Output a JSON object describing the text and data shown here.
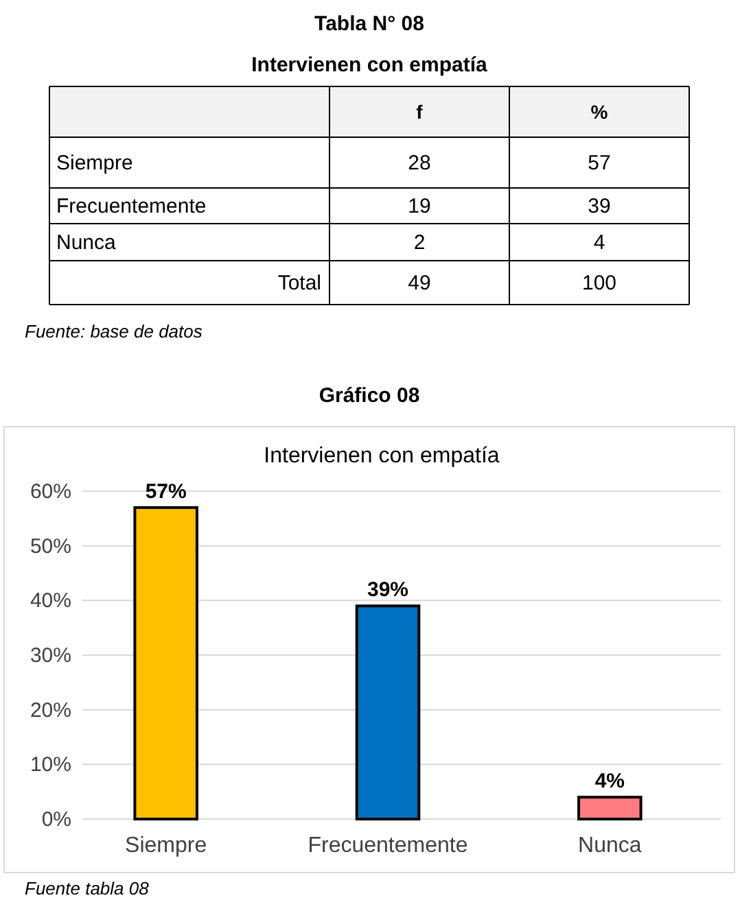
{
  "chart_data": [
    {
      "type": "other",
      "title": "Tabla N° 08",
      "subtitle": "Intervienen con empatía",
      "categories": [
        "Siempre",
        "Frecuentemente",
        "Nunca",
        "Total"
      ],
      "series": [
        {
          "name": "f",
          "values": [
            28,
            19,
            2,
            49
          ]
        },
        {
          "name": "%",
          "values": [
            57,
            39,
            4,
            100
          ]
        }
      ],
      "data_labels": true,
      "annotations": [
        "Fuente: base de datos"
      ]
    },
    {
      "type": "bar",
      "title": "Gráfico 08",
      "subtitle": "Intervienen con empatía",
      "categories": [
        "Siempre",
        "Frecuentemente",
        "Nunca"
      ],
      "values": [
        57,
        39,
        4
      ],
      "colors": [
        "#ffc000",
        "#0070c0",
        "#ff7c80"
      ],
      "value_labels": [
        "57%",
        "39%",
        "4%"
      ],
      "ylim": [
        0,
        60
      ],
      "yticks": [
        {
          "value": 0,
          "label": "0%"
        },
        {
          "value": 10,
          "label": "10%"
        },
        {
          "value": 20,
          "label": "20%"
        },
        {
          "value": 30,
          "label": "30%"
        },
        {
          "value": 40,
          "label": "40%"
        },
        {
          "value": 50,
          "label": "50%"
        },
        {
          "value": 60,
          "label": "60%"
        }
      ],
      "grid": "y",
      "annotations": [
        "Fuente tabla 08"
      ]
    }
  ]
}
